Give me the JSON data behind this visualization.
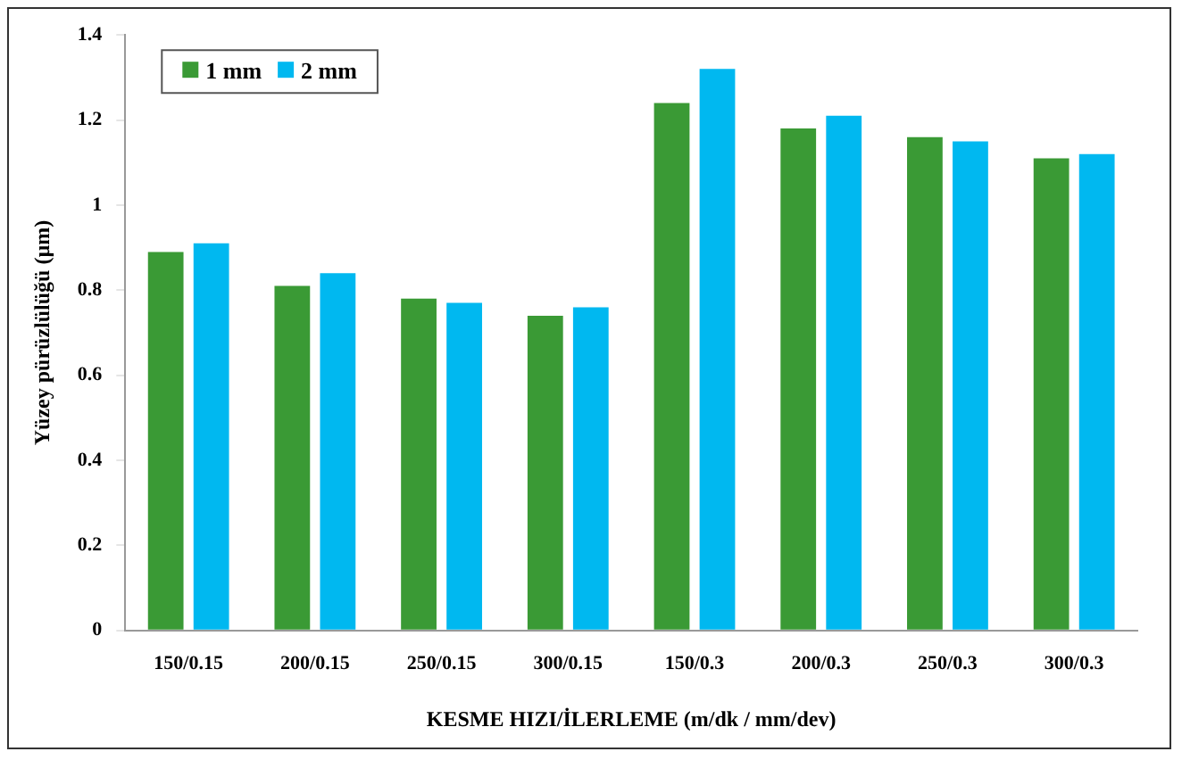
{
  "chart_data": {
    "type": "bar",
    "xlabel": "KESME HIZI/İLERLEME (m/dk / mm/dev)",
    "ylabel": "Yüzey pürüzlülüğü (µm)",
    "categories": [
      "150/0.15",
      "200/0.15",
      "250/0.15",
      "300/0.15",
      "150/0.3",
      "200/0.3",
      "250/0.3",
      "300/0.3"
    ],
    "series": [
      {
        "name": "1 mm",
        "color": "#3a9a35",
        "values": [
          0.89,
          0.81,
          0.78,
          0.74,
          1.24,
          1.18,
          1.16,
          1.11
        ]
      },
      {
        "name": "2 mm",
        "color": "#00b8f0",
        "values": [
          0.91,
          0.84,
          0.77,
          0.76,
          1.32,
          1.21,
          1.15,
          1.12
        ]
      }
    ],
    "ylim": [
      0,
      1.4
    ],
    "yticks": [
      0,
      0.2,
      0.4,
      0.6,
      0.8,
      1,
      1.2,
      1.4
    ],
    "grid": false,
    "legend": "top left"
  }
}
